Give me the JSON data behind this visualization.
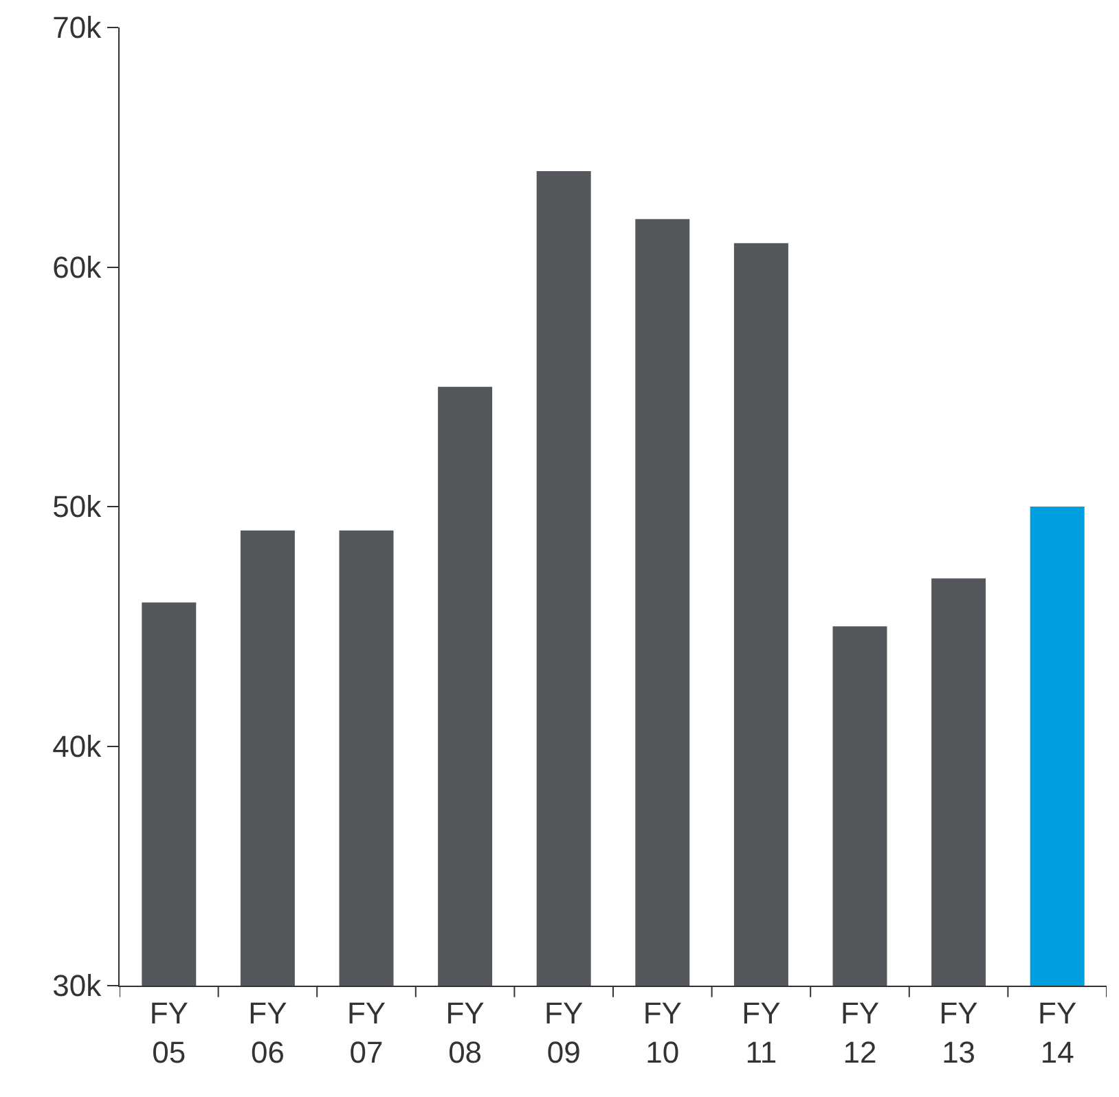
{
  "chart_data": {
    "type": "bar",
    "categories": [
      "FY\n05",
      "FY\n06",
      "FY\n07",
      "FY\n08",
      "FY\n09",
      "FY\n10",
      "FY\n11",
      "FY\n12",
      "FY\n13",
      "FY\n14"
    ],
    "values": [
      46000,
      49000,
      49000,
      55000,
      64000,
      62000,
      61000,
      45000,
      47000,
      50000
    ],
    "colors": [
      "#54575b",
      "#54575b",
      "#54575b",
      "#54575b",
      "#54575b",
      "#54575b",
      "#54575b",
      "#54575b",
      "#54575b",
      "#009fe0"
    ],
    "ylim": [
      30000,
      70000
    ],
    "yticks": [
      {
        "value": 30000,
        "label": "30k"
      },
      {
        "value": 40000,
        "label": "40k"
      },
      {
        "value": 50000,
        "label": "50k"
      },
      {
        "value": 60000,
        "label": "60k"
      },
      {
        "value": 70000,
        "label": "70k"
      }
    ]
  }
}
